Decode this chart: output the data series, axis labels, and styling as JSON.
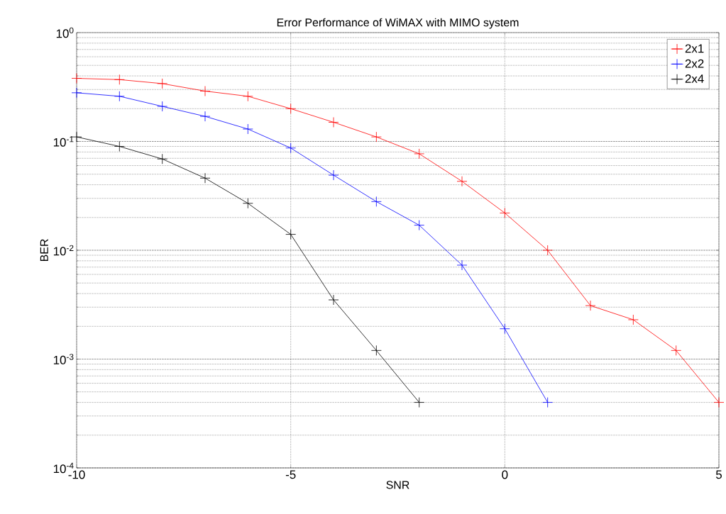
{
  "chart_data": {
    "type": "line",
    "title": "Error Performance of WiMAX with MIMO system",
    "xlabel": "SNR",
    "ylabel": "BER",
    "x": [
      -10,
      -9,
      -8,
      -7,
      -6,
      -5,
      -4,
      -3,
      -2,
      -1,
      0,
      1,
      2,
      3,
      4,
      5
    ],
    "series": [
      {
        "name": "2x1",
        "color": "#ff0000",
        "values": [
          0.38,
          0.37,
          0.34,
          0.29,
          0.26,
          0.2,
          0.15,
          0.11,
          0.077,
          0.043,
          0.022,
          0.01,
          0.0031,
          0.0023,
          0.0012,
          0.0004
        ]
      },
      {
        "name": "2x2",
        "color": "#0000ff",
        "values": [
          0.28,
          0.26,
          0.21,
          0.17,
          0.13,
          0.087,
          0.049,
          0.028,
          0.017,
          0.0073,
          0.0019,
          0.0004,
          null,
          null,
          null,
          null
        ]
      },
      {
        "name": "2x4",
        "color": "#000000",
        "values": [
          0.11,
          0.09,
          0.069,
          0.046,
          0.027,
          0.014,
          0.0035,
          0.0012,
          0.0004,
          null,
          null,
          null,
          null,
          null,
          null,
          null
        ]
      }
    ],
    "xlim": [
      -10,
      5
    ],
    "xticks": [
      -10,
      -5,
      0,
      5
    ],
    "ylim": [
      0.0001,
      1
    ],
    "yticks": [
      {
        "value": 0.0001,
        "label": "10$^{-4}$"
      },
      {
        "value": 0.001,
        "label": "10$^{-3}$"
      },
      {
        "value": 0.01,
        "label": "10$^{-2}$"
      },
      {
        "value": 0.1,
        "label": "10$^{-1}$"
      },
      {
        "value": 1,
        "label": "10$^{0}$"
      }
    ],
    "log": "y",
    "grid": true,
    "legend": "top right",
    "marker": "cross",
    "line_style": "solid"
  }
}
